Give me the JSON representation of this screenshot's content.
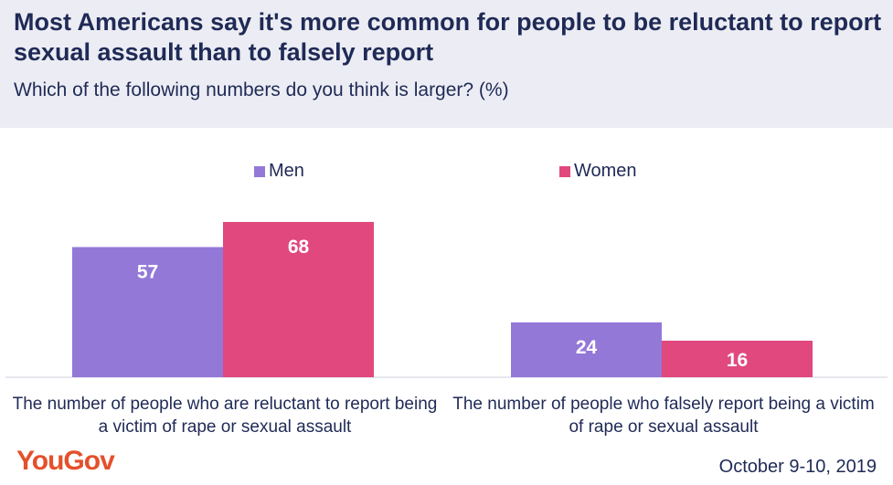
{
  "header": {
    "title": "Most Americans say it's more common for people to be reluctant to report sexual assault than to falsely report",
    "subtitle": "Which of the following numbers do you think is larger? (%)"
  },
  "chart_data": {
    "type": "bar",
    "categories": [
      "The number of people who are reluctant to report being a victim of rape or sexual assault",
      "The number of people who falsely report being a victim of rape or sexual assault"
    ],
    "series": [
      {
        "name": "Men",
        "values": [
          57,
          24
        ],
        "color": "#9478d8"
      },
      {
        "name": "Women",
        "values": [
          68,
          16
        ],
        "color": "#e0487e"
      }
    ],
    "ylim": [
      0,
      100
    ],
    "legend_position": "top",
    "grid": false
  },
  "footer": {
    "logo": "YouGov",
    "date": "October 9-10, 2019"
  }
}
